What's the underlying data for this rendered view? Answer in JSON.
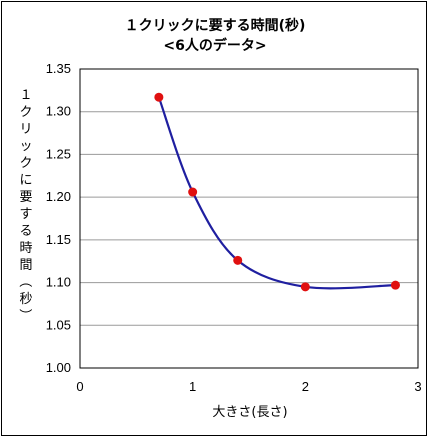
{
  "chart_data": {
    "type": "line",
    "title": "１クリックに要する時間(秒)",
    "subtitle": "<6人のデータ>",
    "xlabel": "大きさ(長さ)",
    "ylabel": "１クリックに要する時間（秒）",
    "xlim": [
      0,
      3
    ],
    "ylim": [
      1.0,
      1.35
    ],
    "x_ticks": [
      "0",
      "1",
      "2",
      "3"
    ],
    "y_ticks": [
      "1.35",
      "1.30",
      "1.25",
      "1.20",
      "1.15",
      "1.10",
      "1.05",
      "1.00"
    ],
    "grid": "horizontal",
    "series": [
      {
        "x": [
          0.7,
          1.0,
          1.4,
          2.0,
          2.8
        ],
        "y": [
          1.317,
          1.206,
          1.126,
          1.095,
          1.097
        ],
        "line_color": "#1f1fa0",
        "marker_color": "#e01010"
      }
    ]
  }
}
